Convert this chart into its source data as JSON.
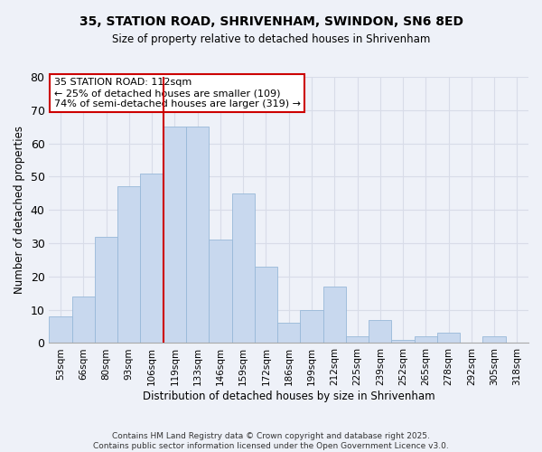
{
  "title": "35, STATION ROAD, SHRIVENHAM, SWINDON, SN6 8ED",
  "subtitle": "Size of property relative to detached houses in Shrivenham",
  "xlabel": "Distribution of detached houses by size in Shrivenham",
  "ylabel": "Number of detached properties",
  "bin_labels": [
    "53sqm",
    "66sqm",
    "80sqm",
    "93sqm",
    "106sqm",
    "119sqm",
    "133sqm",
    "146sqm",
    "159sqm",
    "172sqm",
    "186sqm",
    "199sqm",
    "212sqm",
    "225sqm",
    "239sqm",
    "252sqm",
    "265sqm",
    "278sqm",
    "292sqm",
    "305sqm",
    "318sqm"
  ],
  "bar_heights": [
    8,
    14,
    32,
    47,
    51,
    65,
    65,
    31,
    45,
    23,
    6,
    10,
    17,
    2,
    7,
    1,
    2,
    3,
    0,
    2,
    0
  ],
  "bar_color": "#c8d8ee",
  "bar_edgecolor": "#98b8d8",
  "ylim": [
    0,
    80
  ],
  "yticks": [
    0,
    10,
    20,
    30,
    40,
    50,
    60,
    70,
    80
  ],
  "vline_x": 4.5,
  "vline_color": "#cc0000",
  "annotation_title": "35 STATION ROAD: 112sqm",
  "annotation_line1": "← 25% of detached houses are smaller (109)",
  "annotation_line2": "74% of semi-detached houses are larger (319) →",
  "footer1": "Contains HM Land Registry data © Crown copyright and database right 2025.",
  "footer2": "Contains public sector information licensed under the Open Government Licence v3.0.",
  "background_color": "#eef1f8",
  "plot_background": "#eef1f8",
  "grid_color": "#d8dce8"
}
